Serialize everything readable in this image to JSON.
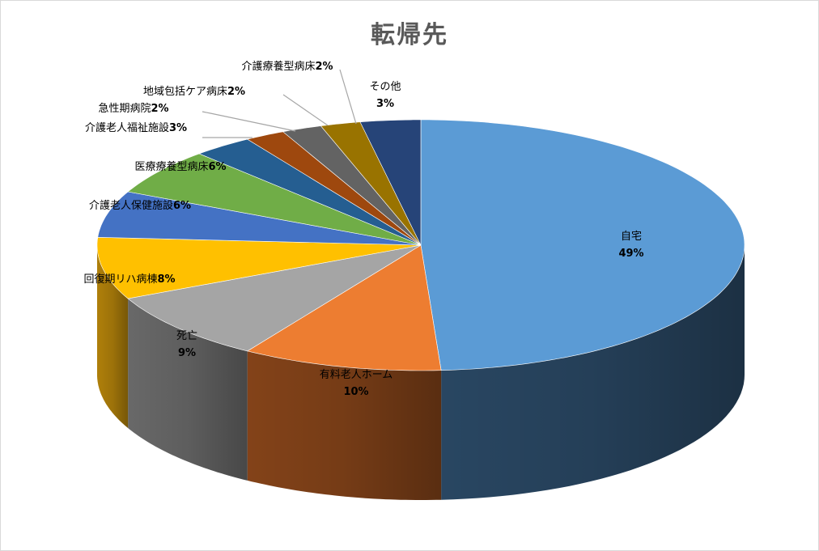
{
  "chart_data": {
    "type": "pie",
    "title": "転帰先",
    "slices": [
      {
        "label": "自宅",
        "value": 49,
        "pct_text": "49%",
        "color": "#5b9bd5",
        "side": "#2b4a67"
      },
      {
        "label": "有料老人ホーム",
        "value": 10,
        "pct_text": "10%",
        "color": "#ed7d31",
        "side": "#8a461a"
      },
      {
        "label": "死亡",
        "value": 9,
        "pct_text": "9%",
        "color": "#a5a5a5",
        "side": "#6e6e6e"
      },
      {
        "label": "回復期リハ病棟",
        "value": 8,
        "pct_text": "8%",
        "color": "#ffc000",
        "side": "#b8860b"
      },
      {
        "label": "介護老人保健施設",
        "value": 6,
        "pct_text": "6%",
        "color": "#4472c4",
        "side": "#2b4a83"
      },
      {
        "label": "医療療養型病床",
        "value": 6,
        "pct_text": "6%",
        "color": "#70ad47",
        "side": "#4a7530"
      },
      {
        "label": "介護老人福祉施設",
        "value": 3,
        "pct_text": "3%",
        "color": "#255e91",
        "side": "#173b5c"
      },
      {
        "label": "急性期病院",
        "value": 2,
        "pct_text": "2%",
        "color": "#9e480e",
        "side": "#642d09"
      },
      {
        "label": "地域包括ケア病床",
        "value": 2,
        "pct_text": "2%",
        "color": "#636363",
        "side": "#3f3f3f"
      },
      {
        "label": "介護療養型病床",
        "value": 2,
        "pct_text": "2%",
        "color": "#997300",
        "side": "#614900"
      },
      {
        "label": "その他",
        "value": 3,
        "pct_text": "3%",
        "color": "#264478",
        "side": "#17294a"
      }
    ],
    "legend": "none"
  }
}
